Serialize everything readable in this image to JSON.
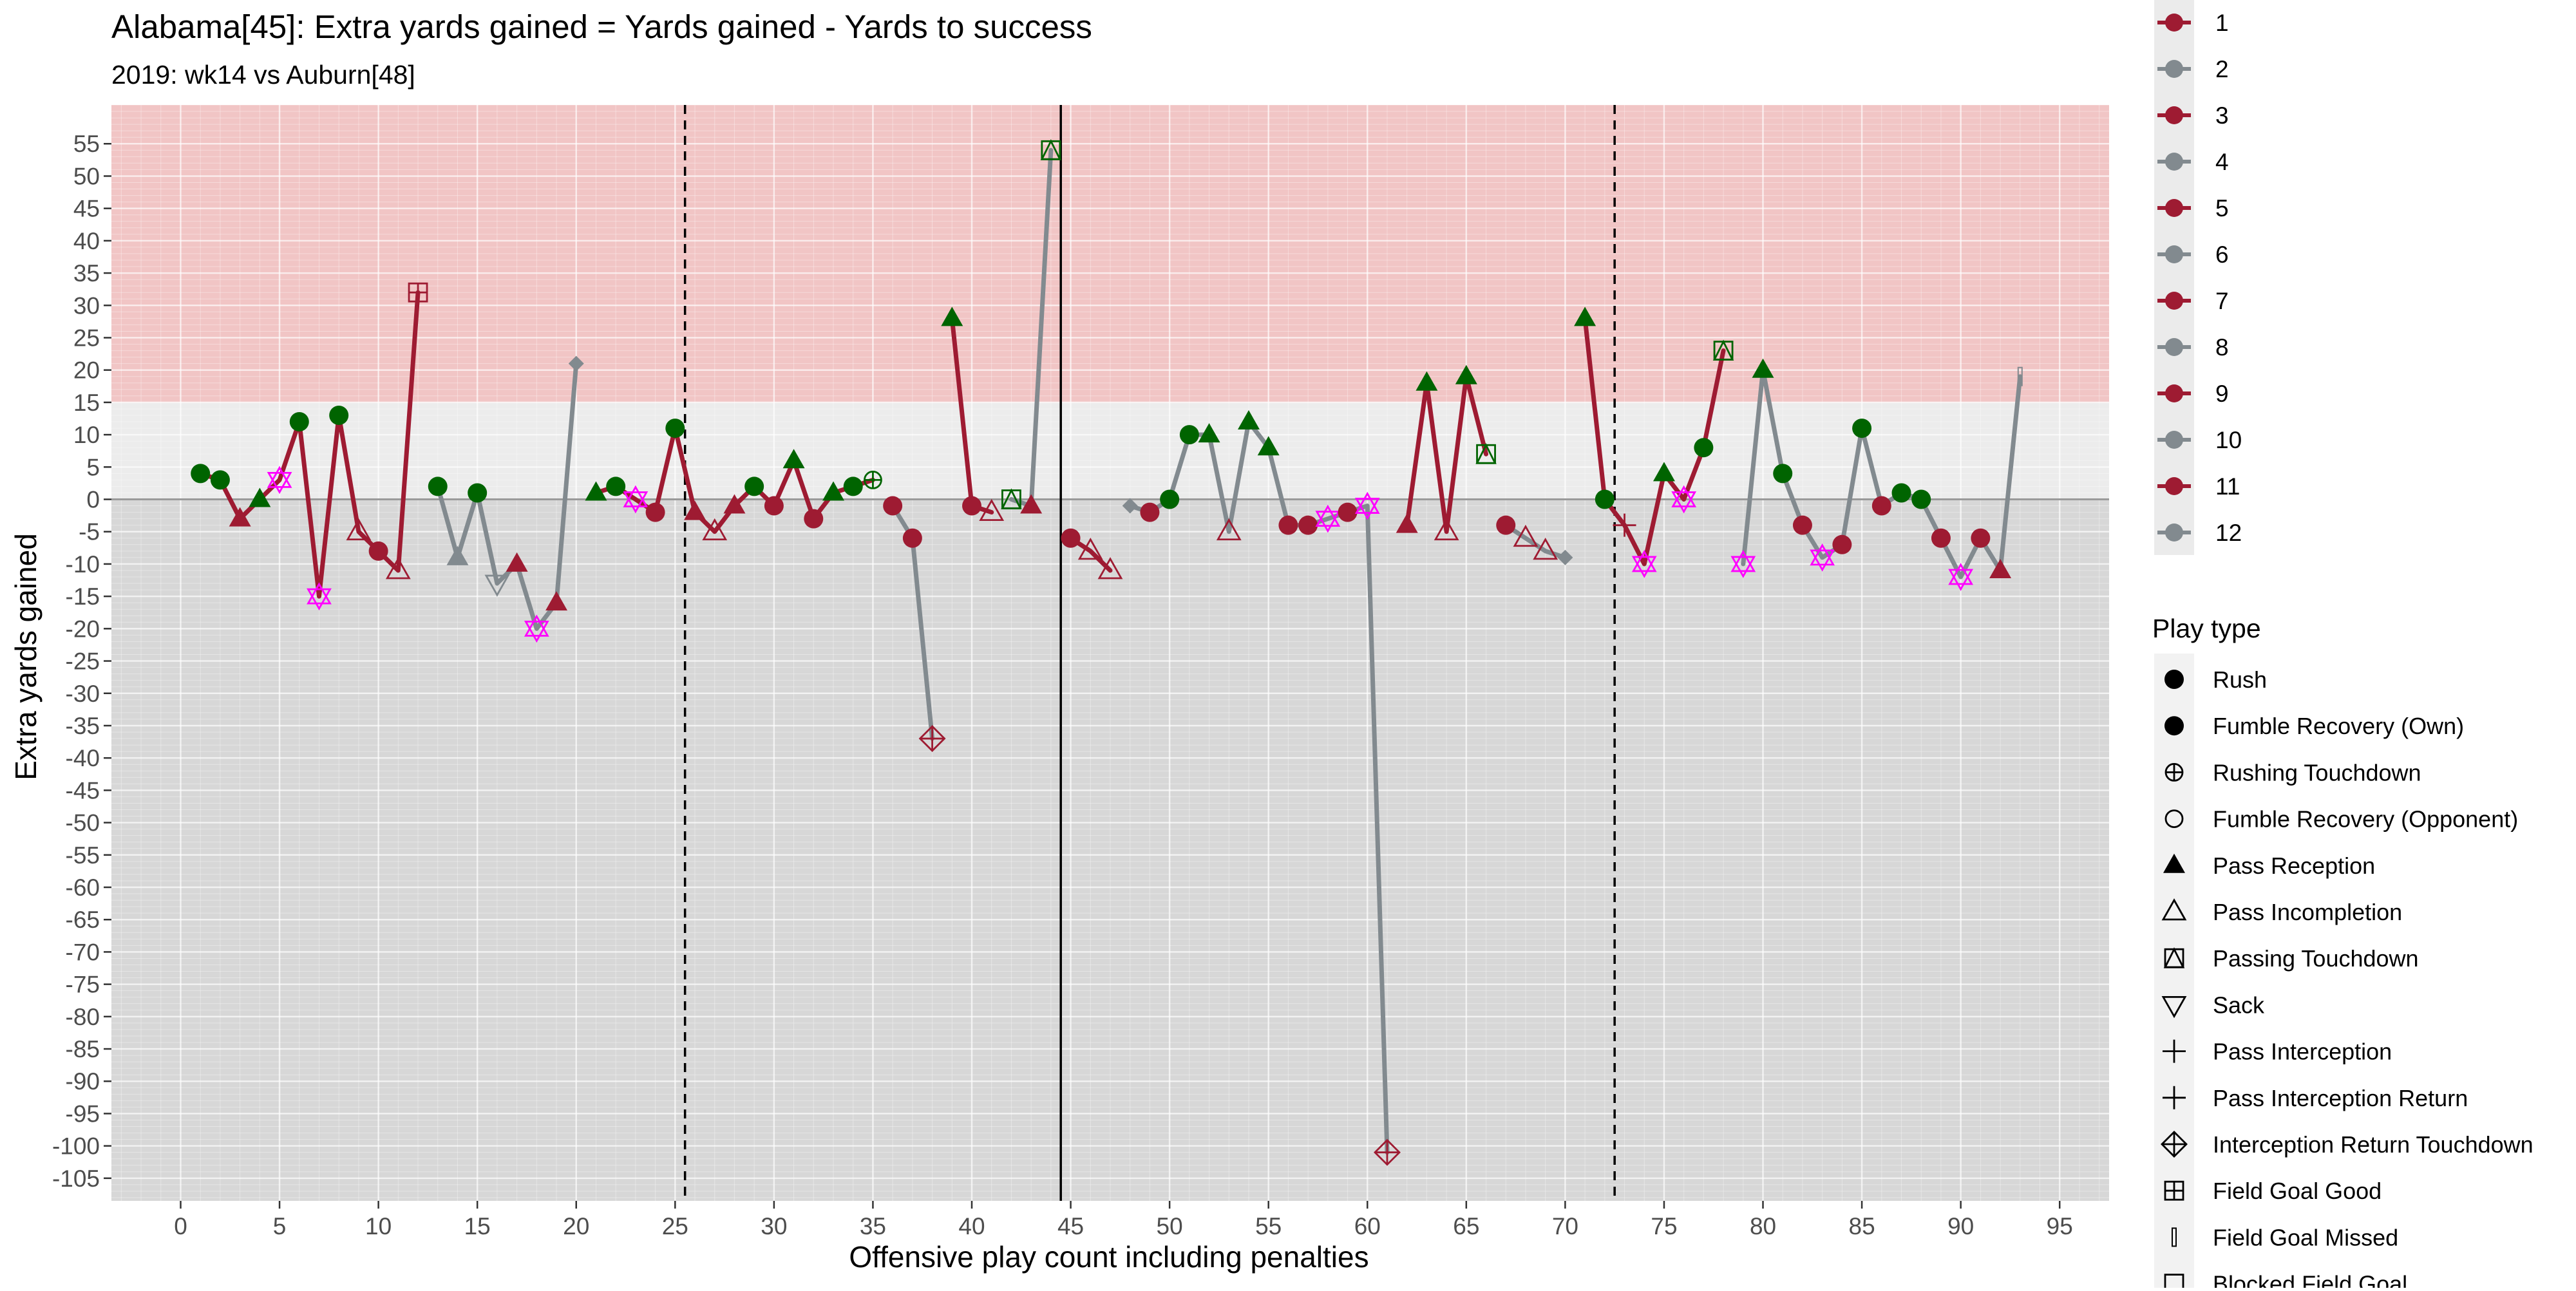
{
  "chart_data": {
    "type": "scatter",
    "title": "Alabama[45]: Extra yards gained = Yards gained - Yards to success",
    "subtitle": "2019: wk14 vs Auburn[48]",
    "xlabel": "Offensive play count including penalties",
    "ylabel": "Extra yards gained",
    "xlim": [
      -3.5,
      97.5
    ],
    "ylim": [
      -108.5,
      61
    ],
    "x_ticks": [
      0,
      5,
      10,
      15,
      20,
      25,
      30,
      35,
      40,
      45,
      50,
      55,
      60,
      65,
      70,
      75,
      80,
      85,
      90,
      95
    ],
    "y_ticks": [
      55,
      50,
      45,
      40,
      35,
      30,
      25,
      20,
      15,
      10,
      5,
      0,
      -5,
      -10,
      -15,
      -20,
      -25,
      -30,
      -35,
      -40,
      -45,
      -50,
      -55,
      -60,
      -65,
      -70,
      -75,
      -80,
      -85,
      -90,
      -95,
      -100,
      -105
    ],
    "bands": [
      {
        "from": 15,
        "to": 61,
        "color": "#f1c5c5"
      },
      {
        "from": 0,
        "to": 15,
        "color": "#ececec"
      },
      {
        "from": -108.5,
        "to": 0,
        "color": "#d7d7d7"
      }
    ],
    "quarter_lines": [
      25.5,
      72.5
    ],
    "half_line": 44.5,
    "zero_line": 0,
    "colors": {
      "odd_drive": "#9e1b32",
      "even_drive": "#828a8f",
      "success": "#006400",
      "special": "#ff00ff"
    },
    "legend_drive": {
      "items": [
        "1",
        "2",
        "3",
        "4",
        "5",
        "6",
        "7",
        "8",
        "9",
        "10",
        "11",
        "12"
      ]
    },
    "legend_playtype": {
      "title": "Play type",
      "items": [
        {
          "label": "Rush",
          "shape": "circle"
        },
        {
          "label": "Fumble Recovery (Own)",
          "shape": "circle"
        },
        {
          "label": "Rushing Touchdown",
          "shape": "circle-plus"
        },
        {
          "label": "Fumble Recovery (Opponent)",
          "shape": "circle-open"
        },
        {
          "label": "Pass Reception",
          "shape": "triangle"
        },
        {
          "label": "Pass Incompletion",
          "shape": "triangle-open"
        },
        {
          "label": "Passing Touchdown",
          "shape": "square-triangle"
        },
        {
          "label": "Sack",
          "shape": "triangle-down-open"
        },
        {
          "label": "Pass Interception",
          "shape": "plus"
        },
        {
          "label": "Pass Interception Return",
          "shape": "plus"
        },
        {
          "label": "Interception Return Touchdown",
          "shape": "diamond-plus"
        },
        {
          "label": "Field Goal Good",
          "shape": "square-plus"
        },
        {
          "label": "Field Goal Missed",
          "shape": "bar"
        },
        {
          "label": "Blocked Field Goal",
          "shape": "square-open"
        }
      ]
    },
    "drives": [
      {
        "name": "1",
        "points": [
          {
            "x": 1,
            "y": 4,
            "shape": "circle",
            "c": "success"
          },
          {
            "x": 2,
            "y": 3,
            "shape": "circle",
            "c": "success"
          },
          {
            "x": 3,
            "y": -3,
            "shape": "triangle",
            "c": "drive"
          },
          {
            "x": 4,
            "y": 0,
            "shape": "triangle",
            "c": "success"
          },
          {
            "x": 5,
            "y": 3,
            "shape": "star-open",
            "c": "special"
          },
          {
            "x": 6,
            "y": 12,
            "shape": "circle",
            "c": "success"
          },
          {
            "x": 7,
            "y": -15,
            "shape": "star-open",
            "c": "special"
          },
          {
            "x": 8,
            "y": 13,
            "shape": "circle",
            "c": "success"
          },
          {
            "x": 9,
            "y": -5,
            "shape": "triangle-open",
            "c": "drive"
          },
          {
            "x": 10,
            "y": -8,
            "shape": "circle",
            "c": "drive"
          },
          {
            "x": 11,
            "y": -11,
            "shape": "triangle-open",
            "c": "drive"
          },
          {
            "x": 12,
            "y": 32,
            "shape": "square-plus",
            "c": "drive"
          }
        ]
      },
      {
        "name": "2",
        "points": [
          {
            "x": 13,
            "y": 2,
            "shape": "circle",
            "c": "success"
          },
          {
            "x": 14,
            "y": -9,
            "shape": "triangle",
            "c": "drive"
          },
          {
            "x": 15,
            "y": 1,
            "shape": "circle",
            "c": "success"
          },
          {
            "x": 16,
            "y": -13,
            "shape": "triangle-down-open",
            "c": "drive"
          },
          {
            "x": 17,
            "y": -10,
            "shape": "triangle",
            "c": "odd"
          },
          {
            "x": 18,
            "y": -20,
            "shape": "star-open",
            "c": "special"
          },
          {
            "x": 19,
            "y": -16,
            "shape": "triangle",
            "c": "odd"
          },
          {
            "x": 20,
            "y": 21,
            "shape": "diamond",
            "c": "drive"
          }
        ]
      },
      {
        "name": "3",
        "points": [
          {
            "x": 21,
            "y": 1,
            "shape": "triangle",
            "c": "success"
          },
          {
            "x": 22,
            "y": 2,
            "shape": "circle",
            "c": "success"
          },
          {
            "x": 23,
            "y": 0,
            "shape": "star-open",
            "c": "special"
          },
          {
            "x": 24,
            "y": -2,
            "shape": "circle",
            "c": "drive"
          },
          {
            "x": 25,
            "y": 11,
            "shape": "circle",
            "c": "success"
          },
          {
            "x": 26,
            "y": -2,
            "shape": "triangle",
            "c": "drive"
          },
          {
            "x": 27,
            "y": -5,
            "shape": "triangle-open",
            "c": "drive"
          },
          {
            "x": 28,
            "y": -1,
            "shape": "triangle",
            "c": "drive"
          },
          {
            "x": 29,
            "y": 2,
            "shape": "circle",
            "c": "success"
          },
          {
            "x": 30,
            "y": -1,
            "shape": "circle",
            "c": "drive"
          },
          {
            "x": 31,
            "y": 6,
            "shape": "triangle",
            "c": "success"
          },
          {
            "x": 32,
            "y": -3,
            "shape": "circle",
            "c": "drive"
          },
          {
            "x": 33,
            "y": 1,
            "shape": "triangle",
            "c": "success"
          },
          {
            "x": 34,
            "y": 2,
            "shape": "circle",
            "c": "success"
          },
          {
            "x": 35,
            "y": 3,
            "shape": "circle-plus",
            "c": "success"
          }
        ]
      },
      {
        "name": "4",
        "points": [
          {
            "x": 36,
            "y": -1,
            "shape": "circle",
            "c": "odd"
          },
          {
            "x": 37,
            "y": -6,
            "shape": "circle",
            "c": "odd"
          },
          {
            "x": 38,
            "y": -37,
            "shape": "diamond-plus",
            "c": "odd"
          }
        ]
      },
      {
        "name": "5",
        "points": [
          {
            "x": 39,
            "y": 28,
            "shape": "triangle",
            "c": "success"
          },
          {
            "x": 40,
            "y": -1,
            "shape": "circle",
            "c": "drive"
          },
          {
            "x": 41,
            "y": -2,
            "shape": "triangle-open",
            "c": "drive"
          }
        ]
      },
      {
        "name": "6",
        "points": [
          {
            "x": 42,
            "y": 0,
            "shape": "square-triangle",
            "c": "success"
          },
          {
            "x": 43,
            "y": -1,
            "shape": "triangle",
            "c": "odd"
          },
          {
            "x": 44,
            "y": 54,
            "shape": "square-triangle",
            "c": "success"
          }
        ]
      },
      {
        "name": "7",
        "points": [
          {
            "x": 45,
            "y": -6,
            "shape": "circle",
            "c": "drive"
          },
          {
            "x": 46,
            "y": -8,
            "shape": "triangle-open",
            "c": "drive"
          },
          {
            "x": 47,
            "y": -11,
            "shape": "triangle-open",
            "c": "drive"
          }
        ]
      },
      {
        "name": "8",
        "points": [
          {
            "x": 48,
            "y": -1,
            "shape": "diamond",
            "c": "drive"
          },
          {
            "x": 49,
            "y": -2,
            "shape": "circle",
            "c": "odd"
          },
          {
            "x": 50,
            "y": 0,
            "shape": "circle",
            "c": "success"
          },
          {
            "x": 51,
            "y": 10,
            "shape": "circle",
            "c": "success"
          },
          {
            "x": 52,
            "y": 10,
            "shape": "triangle",
            "c": "success"
          },
          {
            "x": 53,
            "y": -5,
            "shape": "triangle-open",
            "c": "odd"
          },
          {
            "x": 54,
            "y": 12,
            "shape": "triangle",
            "c": "success"
          },
          {
            "x": 55,
            "y": 8,
            "shape": "triangle",
            "c": "success"
          },
          {
            "x": 56,
            "y": -4,
            "shape": "circle",
            "c": "odd"
          },
          {
            "x": 57,
            "y": -4,
            "shape": "circle",
            "c": "odd"
          },
          {
            "x": 58,
            "y": -3,
            "shape": "star-open",
            "c": "special"
          },
          {
            "x": 59,
            "y": -2,
            "shape": "circle",
            "c": "odd"
          },
          {
            "x": 60,
            "y": -1,
            "shape": "star-open",
            "c": "special"
          },
          {
            "x": 61,
            "y": -101,
            "shape": "diamond-plus",
            "c": "odd"
          }
        ]
      },
      {
        "name": "9",
        "points": [
          {
            "x": 62,
            "y": -4,
            "shape": "triangle",
            "c": "drive"
          },
          {
            "x": 63,
            "y": 18,
            "shape": "triangle",
            "c": "success"
          },
          {
            "x": 64,
            "y": -5,
            "shape": "triangle-open",
            "c": "drive"
          },
          {
            "x": 65,
            "y": 19,
            "shape": "triangle",
            "c": "success"
          },
          {
            "x": 66,
            "y": 7,
            "shape": "square-triangle",
            "c": "success"
          }
        ]
      },
      {
        "name": "10",
        "points": [
          {
            "x": 67,
            "y": -4,
            "shape": "circle",
            "c": "odd"
          },
          {
            "x": 68,
            "y": -6,
            "shape": "triangle-open",
            "c": "odd"
          },
          {
            "x": 69,
            "y": -8,
            "shape": "triangle-open",
            "c": "odd"
          },
          {
            "x": 70,
            "y": -9,
            "shape": "diamond",
            "c": "drive"
          }
        ]
      },
      {
        "name": "11",
        "points": [
          {
            "x": 71,
            "y": 28,
            "shape": "triangle",
            "c": "success"
          },
          {
            "x": 72,
            "y": 0,
            "shape": "circle",
            "c": "success"
          },
          {
            "x": 73,
            "y": -4,
            "shape": "plus",
            "c": "drive"
          },
          {
            "x": 74,
            "y": -10,
            "shape": "star-open",
            "c": "special"
          },
          {
            "x": 75,
            "y": 4,
            "shape": "triangle",
            "c": "success"
          },
          {
            "x": 76,
            "y": 0,
            "shape": "star-open",
            "c": "special"
          },
          {
            "x": 77,
            "y": 8,
            "shape": "circle",
            "c": "success"
          },
          {
            "x": 78,
            "y": 23,
            "shape": "square-triangle",
            "c": "success"
          }
        ]
      },
      {
        "name": "12",
        "points": [
          {
            "x": 79,
            "y": -10,
            "shape": "star-open",
            "c": "special"
          },
          {
            "x": 80,
            "y": 20,
            "shape": "triangle",
            "c": "success"
          },
          {
            "x": 81,
            "y": 4,
            "shape": "circle",
            "c": "success"
          },
          {
            "x": 82,
            "y": -4,
            "shape": "circle",
            "c": "odd"
          },
          {
            "x": 83,
            "y": -9,
            "shape": "star-open",
            "c": "special"
          },
          {
            "x": 84,
            "y": -7,
            "shape": "circle",
            "c": "odd"
          },
          {
            "x": 85,
            "y": 11,
            "shape": "circle",
            "c": "success"
          },
          {
            "x": 86,
            "y": -1,
            "shape": "circle",
            "c": "odd"
          },
          {
            "x": 87,
            "y": 1,
            "shape": "circle",
            "c": "success"
          },
          {
            "x": 88,
            "y": 0,
            "shape": "circle",
            "c": "success"
          },
          {
            "x": 89,
            "y": -6,
            "shape": "circle",
            "c": "odd"
          },
          {
            "x": 90,
            "y": -12,
            "shape": "star-open",
            "c": "special"
          },
          {
            "x": 91,
            "y": -6,
            "shape": "circle",
            "c": "odd"
          },
          {
            "x": 92,
            "y": -11,
            "shape": "triangle",
            "c": "odd"
          },
          {
            "x": 93,
            "y": 19,
            "shape": "bar",
            "c": "drive"
          }
        ]
      }
    ]
  }
}
